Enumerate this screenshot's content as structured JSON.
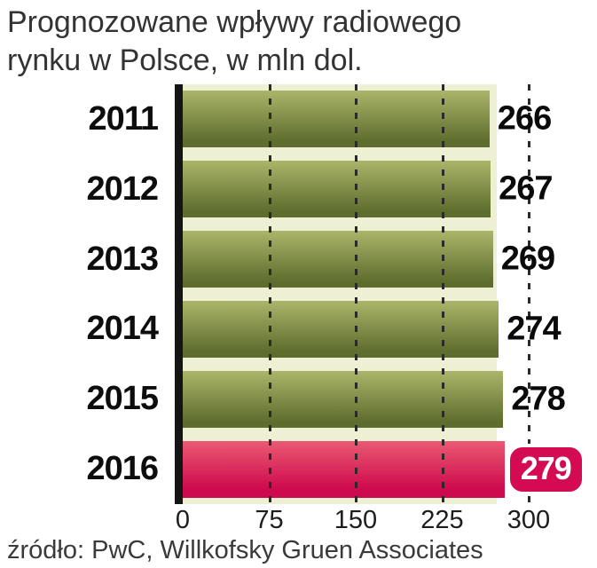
{
  "title": {
    "line1": "Prognozowane wpływy radiowego",
    "line2": "rynku w Polsce, w mln dol."
  },
  "source": "źródło: PwC, Willkofsky Gruen Associates",
  "chart_data": {
    "type": "bar",
    "orientation": "horizontal",
    "title": "Prognozowane wpływy radiowego rynku w Polsce, w mln dol.",
    "unit": "mln dol.",
    "categories": [
      "2011",
      "2012",
      "2013",
      "2014",
      "2015",
      "2016"
    ],
    "values": [
      266,
      267,
      269,
      274,
      278,
      279
    ],
    "xlim": [
      0,
      300
    ],
    "xticks": [
      0,
      75,
      150,
      225,
      300
    ],
    "grid": "vertical-dashed",
    "legend": "none",
    "highlight_index": 5,
    "colors": {
      "bar_top": "#abb56a",
      "bar_bottom": "#5e6d2d",
      "highlight_top": "#ea5a72",
      "highlight_bottom": "#ce0a4e",
      "badge_bg": "#d40b52",
      "badge_text": "#ffffff",
      "plot_bg": "#edf0d3",
      "axis": "#141414",
      "gridline": "#2a2a2a",
      "label": "#0d0d0d"
    }
  }
}
